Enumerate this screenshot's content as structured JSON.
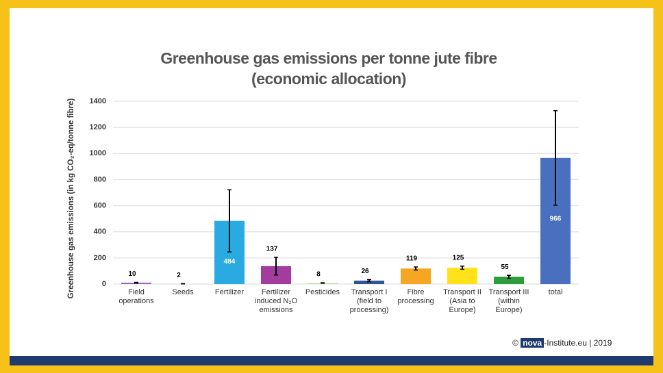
{
  "chart_data": {
    "type": "bar",
    "title": "Greenhouse gas emissions per tonne jute fibre (economic allocation)",
    "y_label": "Greenhouse gas emissions (in kg CO₂-eq/tonne fibre)",
    "categories": [
      "Field operations",
      "Seeds",
      "Fertilizer",
      "Fertilizer induced N₂O emissions",
      "Pesticides",
      "Transport I (field to processing)",
      "Fibre processing",
      "Transport II (Asia to Europe)",
      "Transport III (within Europe)",
      "total"
    ],
    "values": [
      10,
      2,
      484,
      137,
      8,
      26,
      119,
      125,
      55,
      966
    ],
    "errors": [
      3,
      1,
      238,
      68,
      2,
      8,
      12,
      12,
      12,
      362
    ],
    "colors": [
      "#9b5fb5",
      "#d9d9d9",
      "#29abe2",
      "#a23d9f",
      "#c5e0b4",
      "#2f5597",
      "#f5a623",
      "#ffe21a",
      "#2e9e3a",
      "#4a6fbf"
    ],
    "ylim": [
      0,
      1400
    ],
    "yticks": [
      0,
      200,
      400,
      600,
      800,
      1000,
      1200,
      1400
    ],
    "grid": true,
    "copyright": {
      "symbol": "©",
      "logo": "nova",
      "text": "-Institute.eu | 2019"
    }
  }
}
